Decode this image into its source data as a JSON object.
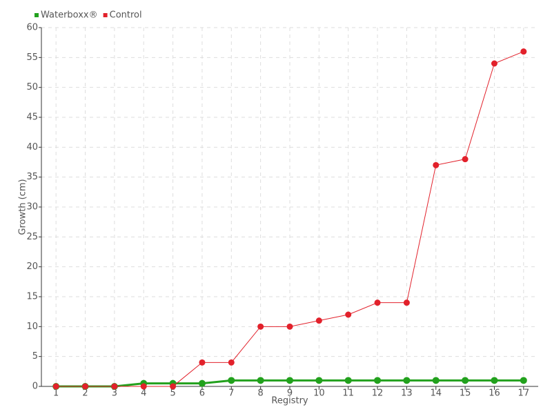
{
  "chart_data": {
    "type": "line",
    "categories": [
      "1",
      "2",
      "3",
      "4",
      "5",
      "6",
      "7",
      "8",
      "9",
      "10",
      "11",
      "12",
      "13",
      "14",
      "15",
      "16",
      "17"
    ],
    "series": [
      {
        "name": "Waterboxx®",
        "color": "#22a11d",
        "values": [
          0,
          0,
          0,
          0.5,
          0.5,
          0.5,
          1,
          1,
          1,
          1,
          1,
          1,
          1,
          1,
          1,
          1,
          1
        ]
      },
      {
        "name": "Control",
        "color": "#e2212b",
        "values": [
          0,
          0,
          0,
          0,
          0,
          4,
          4,
          10,
          10,
          11,
          12,
          14,
          14,
          37,
          38,
          54,
          56
        ]
      }
    ],
    "x_label": "Registry",
    "y_label": "Growth (cm)",
    "ylim": [
      0,
      60
    ],
    "yticks": [
      0,
      5,
      10,
      15,
      20,
      25,
      30,
      35,
      40,
      45,
      50,
      55,
      60
    ],
    "grid": true,
    "legend": "top-left"
  }
}
